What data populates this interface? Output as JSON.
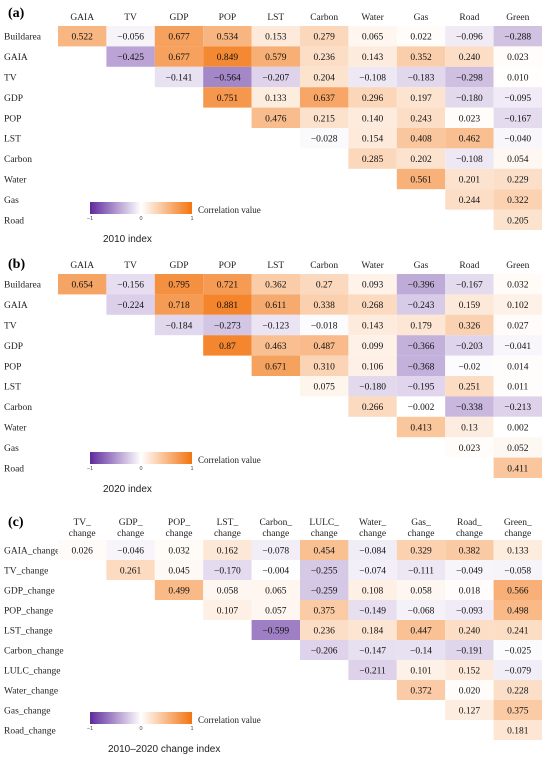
{
  "chart_data": [
    {
      "type": "heatmap",
      "panel_label": "(a)",
      "caption": "2010 index",
      "legend_title": "Correlation value",
      "legend_ticks": [
        "−1",
        "0",
        "1"
      ],
      "color_range": [
        -1,
        1
      ],
      "colors": {
        "negative": "#5e2a9c",
        "neutral": "#ffffff",
        "positive": "#f27410"
      },
      "columns": [
        "GAIA",
        "TV",
        "GDP",
        "POP",
        "LST",
        "Carbon",
        "Water",
        "Gas",
        "Road",
        "Green"
      ],
      "rows": [
        "Buildarea",
        "GAIA",
        "TV",
        "GDP",
        "POP",
        "LST",
        "Carbon",
        "Water",
        "Gas",
        "Road"
      ],
      "values": [
        [
          "0.522",
          "−0.056",
          "0.677",
          "0.534",
          "0.153",
          "0.279",
          "0.065",
          "0.022",
          "−0.096",
          "−0.288"
        ],
        [
          null,
          "−0.425",
          "0.677",
          "0.849",
          "0.579",
          "0.236",
          "0.143",
          "0.352",
          "0.240",
          "0.023"
        ],
        [
          null,
          null,
          "−0.141",
          "−0.564",
          "−0.207",
          "0.204",
          "−0.108",
          "−0.183",
          "−0.298",
          "0.010"
        ],
        [
          null,
          null,
          null,
          "0.751",
          "0.133",
          "0.637",
          "0.296",
          "0.197",
          "−0.180",
          "−0.095"
        ],
        [
          null,
          null,
          null,
          null,
          "0.476",
          "0.215",
          "0.140",
          "0.243",
          "0.023",
          "−0.167"
        ],
        [
          null,
          null,
          null,
          null,
          null,
          "−0.028",
          "0.154",
          "0.408",
          "0.462",
          "−0.040"
        ],
        [
          null,
          null,
          null,
          null,
          null,
          null,
          "0.285",
          "0.202",
          "−0.108",
          "0.054"
        ],
        [
          null,
          null,
          null,
          null,
          null,
          null,
          null,
          "0.561",
          "0.201",
          "0.229"
        ],
        [
          null,
          null,
          null,
          null,
          null,
          null,
          null,
          null,
          "0.244",
          "0.322"
        ],
        [
          null,
          null,
          null,
          null,
          null,
          null,
          null,
          null,
          null,
          "0.205"
        ]
      ]
    },
    {
      "type": "heatmap",
      "panel_label": "(b)",
      "caption": "2020 index",
      "legend_title": "Correlation value",
      "legend_ticks": [
        "−1",
        "0",
        "1"
      ],
      "color_range": [
        -1,
        1
      ],
      "colors": {
        "negative": "#5e2a9c",
        "neutral": "#ffffff",
        "positive": "#f27410"
      },
      "columns": [
        "GAIA",
        "TV",
        "GDP",
        "POP",
        "LST",
        "Carbon",
        "Water",
        "Gas",
        "Road",
        "Green"
      ],
      "rows": [
        "Buildarea",
        "GAIA",
        "TV",
        "GDP",
        "POP",
        "LST",
        "Carbon",
        "Water",
        "Gas",
        "Road"
      ],
      "values": [
        [
          "0.654",
          "−0.156",
          "0.795",
          "0.721",
          "0.362",
          "0.27",
          "0.093",
          "−0.396",
          "−0.167",
          "0.032"
        ],
        [
          null,
          "−0.224",
          "0.718",
          "0.881",
          "0.611",
          "0.338",
          "0.268",
          "−0.243",
          "0.159",
          "0.102"
        ],
        [
          null,
          null,
          "−0.184",
          "−0.273",
          "−0.123",
          "−0.018",
          "0.143",
          "0.179",
          "0.326",
          "0.027"
        ],
        [
          null,
          null,
          null,
          "0.87",
          "0.463",
          "0.487",
          "0.099",
          "−0.366",
          "−0.203",
          "−0.041"
        ],
        [
          null,
          null,
          null,
          null,
          "0.671",
          "0.310",
          "0.106",
          "−0.368",
          "−0.02",
          "0.014"
        ],
        [
          null,
          null,
          null,
          null,
          null,
          "0.075",
          "−0.180",
          "−0.195",
          "0.251",
          "0.011"
        ],
        [
          null,
          null,
          null,
          null,
          null,
          null,
          "0.266",
          "−0.002",
          "−0.338",
          "−0.213"
        ],
        [
          null,
          null,
          null,
          null,
          null,
          null,
          null,
          "0.413",
          "0.13",
          "0.002"
        ],
        [
          null,
          null,
          null,
          null,
          null,
          null,
          null,
          null,
          "0.023",
          "0.052"
        ],
        [
          null,
          null,
          null,
          null,
          null,
          null,
          null,
          null,
          null,
          "0.411"
        ]
      ]
    },
    {
      "type": "heatmap",
      "panel_label": "(c)",
      "caption": "2010–2020 change index",
      "legend_title": "Correlation value",
      "legend_ticks": [
        "−1",
        "0",
        "1"
      ],
      "color_range": [
        -1,
        1
      ],
      "colors": {
        "negative": "#5e2a9c",
        "neutral": "#ffffff",
        "positive": "#f27410"
      },
      "columns": [
        [
          "TV_",
          "change"
        ],
        [
          "GDP_",
          "change"
        ],
        [
          "POP_",
          "change"
        ],
        [
          "LST_",
          "change"
        ],
        [
          "Carbon_",
          "change"
        ],
        [
          "LULC_",
          "change"
        ],
        [
          "Water_",
          "change"
        ],
        [
          "Gas_",
          "change"
        ],
        [
          "Road_",
          "change"
        ],
        [
          "Green_",
          "change"
        ]
      ],
      "rows": [
        "GAIA_change",
        "TV_change",
        "GDP_change",
        "POP_change",
        "LST_change",
        "Carbon_change",
        "LULC_change",
        "Water_change",
        "Gas_change",
        "Road_change"
      ],
      "values": [
        [
          "0.026",
          "−0.046",
          "0.032",
          "0.162",
          "−0.078",
          "0.454",
          "−0.084",
          "0.329",
          "0.382",
          "0.133"
        ],
        [
          null,
          "0.261",
          "0.045",
          "−0.170",
          "−0.004",
          "−0.255",
          "−0.074",
          "−0.111",
          "−0.049",
          "−0.058"
        ],
        [
          null,
          null,
          "0.499",
          "0.058",
          "0.065",
          "−0.259",
          "0.108",
          "0.058",
          "0.018",
          "0.566"
        ],
        [
          null,
          null,
          null,
          "0.107",
          "0.057",
          "0.375",
          "−0.149",
          "−0.068",
          "−0.093",
          "0.498"
        ],
        [
          null,
          null,
          null,
          null,
          "−0.599",
          "0.236",
          "0.184",
          "0.447",
          "0.240",
          "0.241"
        ],
        [
          null,
          null,
          null,
          null,
          null,
          "−0.206",
          "−0.147",
          "−0.14",
          "−0.191",
          "−0.025"
        ],
        [
          null,
          null,
          null,
          null,
          null,
          null,
          "−0.211",
          "0.101",
          "0.152",
          "−0.079"
        ],
        [
          null,
          null,
          null,
          null,
          null,
          null,
          null,
          "0.372",
          "0.020",
          "0.228"
        ],
        [
          null,
          null,
          null,
          null,
          null,
          null,
          null,
          null,
          "0.127",
          "0.375"
        ],
        [
          null,
          null,
          null,
          null,
          null,
          null,
          null,
          null,
          null,
          "0.181"
        ]
      ]
    }
  ]
}
